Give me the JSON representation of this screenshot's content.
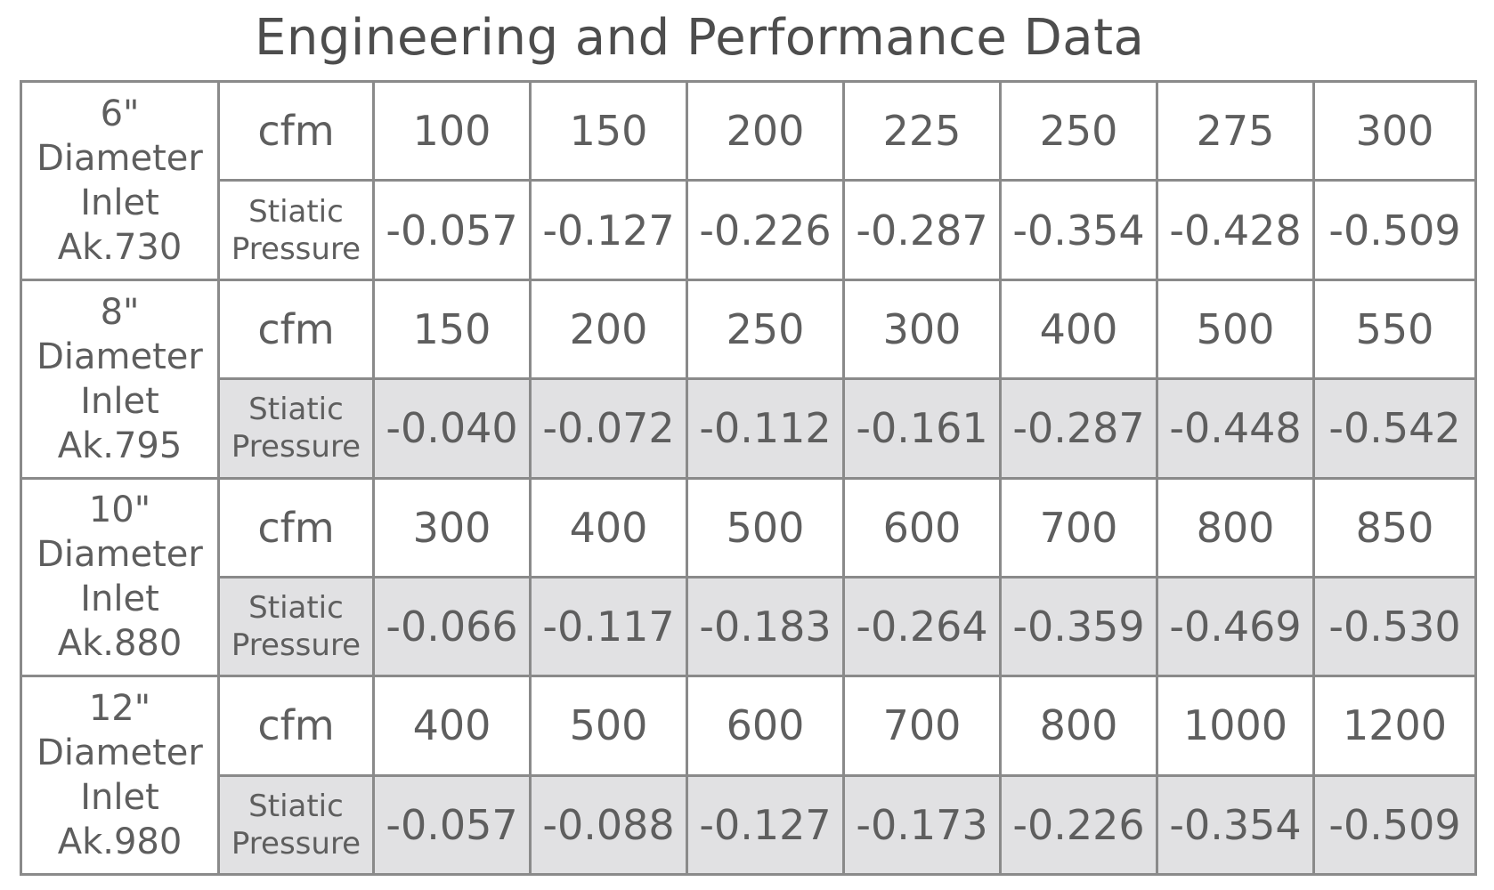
{
  "title": "Engineering and Performance Data",
  "cfm_label": "cfm",
  "sp_label_line1": "Stiatic",
  "sp_label_line2": "Pressure",
  "colors": {
    "text": "#5e5e5e",
    "border": "#8a8a8a",
    "shaded_row": "#e1e1e3"
  },
  "groups": [
    {
      "size": "6\"",
      "line2": "Diameter",
      "line3": "Inlet",
      "model": "Ak.730",
      "cfm": [
        "100",
        "150",
        "200",
        "225",
        "250",
        "275",
        "300"
      ],
      "static_pressure": [
        "-0.057",
        "-0.127",
        "-0.226",
        "-0.287",
        "-0.354",
        "-0.428",
        "-0.509"
      ]
    },
    {
      "size": "8\"",
      "line2": "Diameter",
      "line3": "Inlet",
      "model": "Ak.795",
      "cfm": [
        "150",
        "200",
        "250",
        "300",
        "400",
        "500",
        "550"
      ],
      "static_pressure": [
        "-0.040",
        "-0.072",
        "-0.112",
        "-0.161",
        "-0.287",
        "-0.448",
        "-0.542"
      ]
    },
    {
      "size": "10\"",
      "line2": "Diameter",
      "line3": "Inlet",
      "model": "Ak.880",
      "cfm": [
        "300",
        "400",
        "500",
        "600",
        "700",
        "800",
        "850"
      ],
      "static_pressure": [
        "-0.066",
        "-0.117",
        "-0.183",
        "-0.264",
        "-0.359",
        "-0.469",
        "-0.530"
      ]
    },
    {
      "size": "12\"",
      "line2": "Diameter",
      "line3": "Inlet",
      "model": "Ak.980",
      "cfm": [
        "400",
        "500",
        "600",
        "700",
        "800",
        "1000",
        "1200"
      ],
      "static_pressure": [
        "-0.057",
        "-0.088",
        "-0.127",
        "-0.173",
        "-0.226",
        "-0.354",
        "-0.509"
      ]
    }
  ]
}
